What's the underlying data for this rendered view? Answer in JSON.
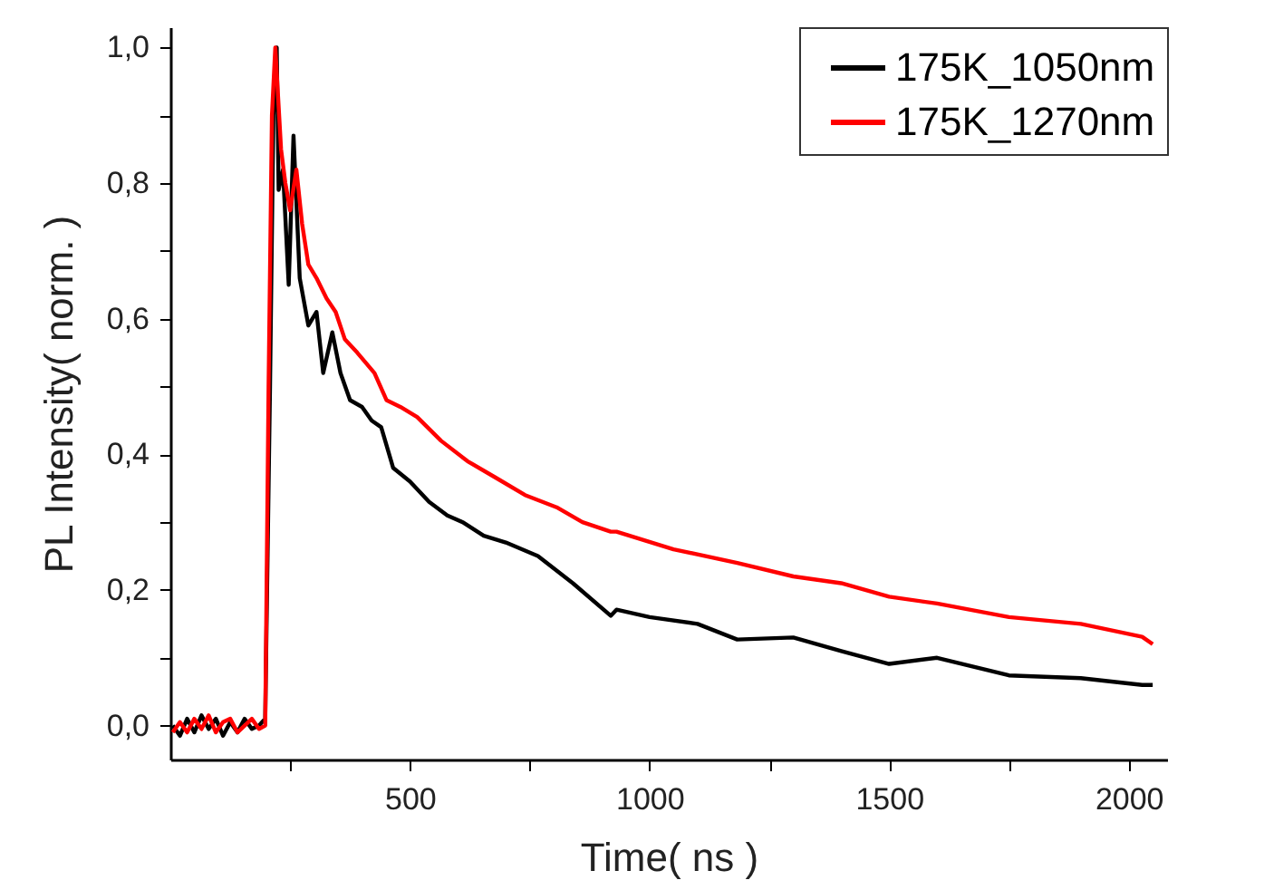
{
  "chart_data": {
    "type": "line",
    "xlabel": "Time(   ns )",
    "ylabel": "PL Intensity(   norm. )",
    "xlim": [
      0,
      2080
    ],
    "ylim": [
      -0.05,
      1.03
    ],
    "xticks": [
      {
        "value": 250,
        "label": null
      },
      500,
      {
        "value": 750,
        "label": null
      },
      1000,
      {
        "value": 1250,
        "label": null
      },
      1500,
      {
        "value": 1750,
        "label": null
      },
      2000
    ],
    "yticks": [
      {
        "value": 0,
        "label": "0,0"
      },
      {
        "value": 0.1,
        "label": null
      },
      {
        "value": 0.2,
        "label": "0,2"
      },
      {
        "value": 0.3,
        "label": null
      },
      {
        "value": 0.4,
        "label": "0,4"
      },
      {
        "value": 0.5,
        "label": null
      },
      {
        "value": 0.6,
        "label": "0,6"
      },
      {
        "value": 0.7,
        "label": null
      },
      {
        "value": 0.8,
        "label": "0,8"
      },
      {
        "value": 0.9,
        "label": null
      },
      {
        "value": 1.0,
        "label": "1,0"
      }
    ],
    "legend": "top right",
    "grid": false,
    "line_style": "solid",
    "marker": "none",
    "series": [
      {
        "name": "175K_1050nm",
        "color": "#000000",
        "x": [
          5,
          20,
          35,
          50,
          65,
          80,
          95,
          110,
          125,
          140,
          155,
          170,
          185,
          198,
          208,
          215,
          222,
          226,
          235,
          247,
          257,
          270,
          288,
          305,
          319,
          338,
          355,
          375,
          400,
          420,
          440,
          465,
          500,
          540,
          578,
          610,
          654,
          700,
          767,
          840,
          919,
          931,
          1000,
          1100,
          1183,
          1300,
          1400,
          1500,
          1600,
          1750,
          1900,
          2028,
          2050
        ],
        "values": [
          0.0,
          -0.015,
          0.01,
          -0.01,
          0.015,
          -0.005,
          0.01,
          -0.015,
          0.005,
          -0.01,
          0.01,
          -0.005,
          0.0,
          0.01,
          0.5,
          0.9,
          1.0,
          0.79,
          0.82,
          0.65,
          0.87,
          0.66,
          0.59,
          0.61,
          0.52,
          0.58,
          0.52,
          0.48,
          0.47,
          0.45,
          0.44,
          0.38,
          0.36,
          0.33,
          0.31,
          0.3,
          0.28,
          0.27,
          0.25,
          0.21,
          0.162,
          0.171,
          0.16,
          0.15,
          0.127,
          0.13,
          0.11,
          0.091,
          0.1,
          0.074,
          0.07,
          0.06,
          0.06
        ]
      },
      {
        "name": "175K_1270nm",
        "color": "#ff0000",
        "x": [
          5,
          20,
          35,
          50,
          65,
          80,
          95,
          110,
          125,
          140,
          155,
          170,
          185,
          198,
          205,
          212,
          219,
          231,
          240,
          250,
          263,
          275,
          288,
          305,
          326,
          345,
          364,
          390,
          426,
          451,
          480,
          515,
          565,
          620,
          678,
          740,
          806,
          860,
          919,
          931,
          1050,
          1183,
          1300,
          1400,
          1500,
          1600,
          1750,
          1900,
          2028,
          2050
        ],
        "values": [
          -0.01,
          0.005,
          -0.01,
          0.01,
          -0.005,
          0.015,
          -0.01,
          0.005,
          0.01,
          -0.01,
          0.0,
          0.01,
          -0.005,
          0.0,
          0.5,
          0.9,
          1.0,
          0.85,
          0.8,
          0.76,
          0.82,
          0.74,
          0.68,
          0.66,
          0.63,
          0.61,
          0.57,
          0.55,
          0.52,
          0.48,
          0.47,
          0.455,
          0.42,
          0.39,
          0.366,
          0.34,
          0.322,
          0.3,
          0.286,
          0.286,
          0.26,
          0.24,
          0.22,
          0.21,
          0.19,
          0.18,
          0.16,
          0.15,
          0.131,
          0.12
        ]
      }
    ]
  }
}
